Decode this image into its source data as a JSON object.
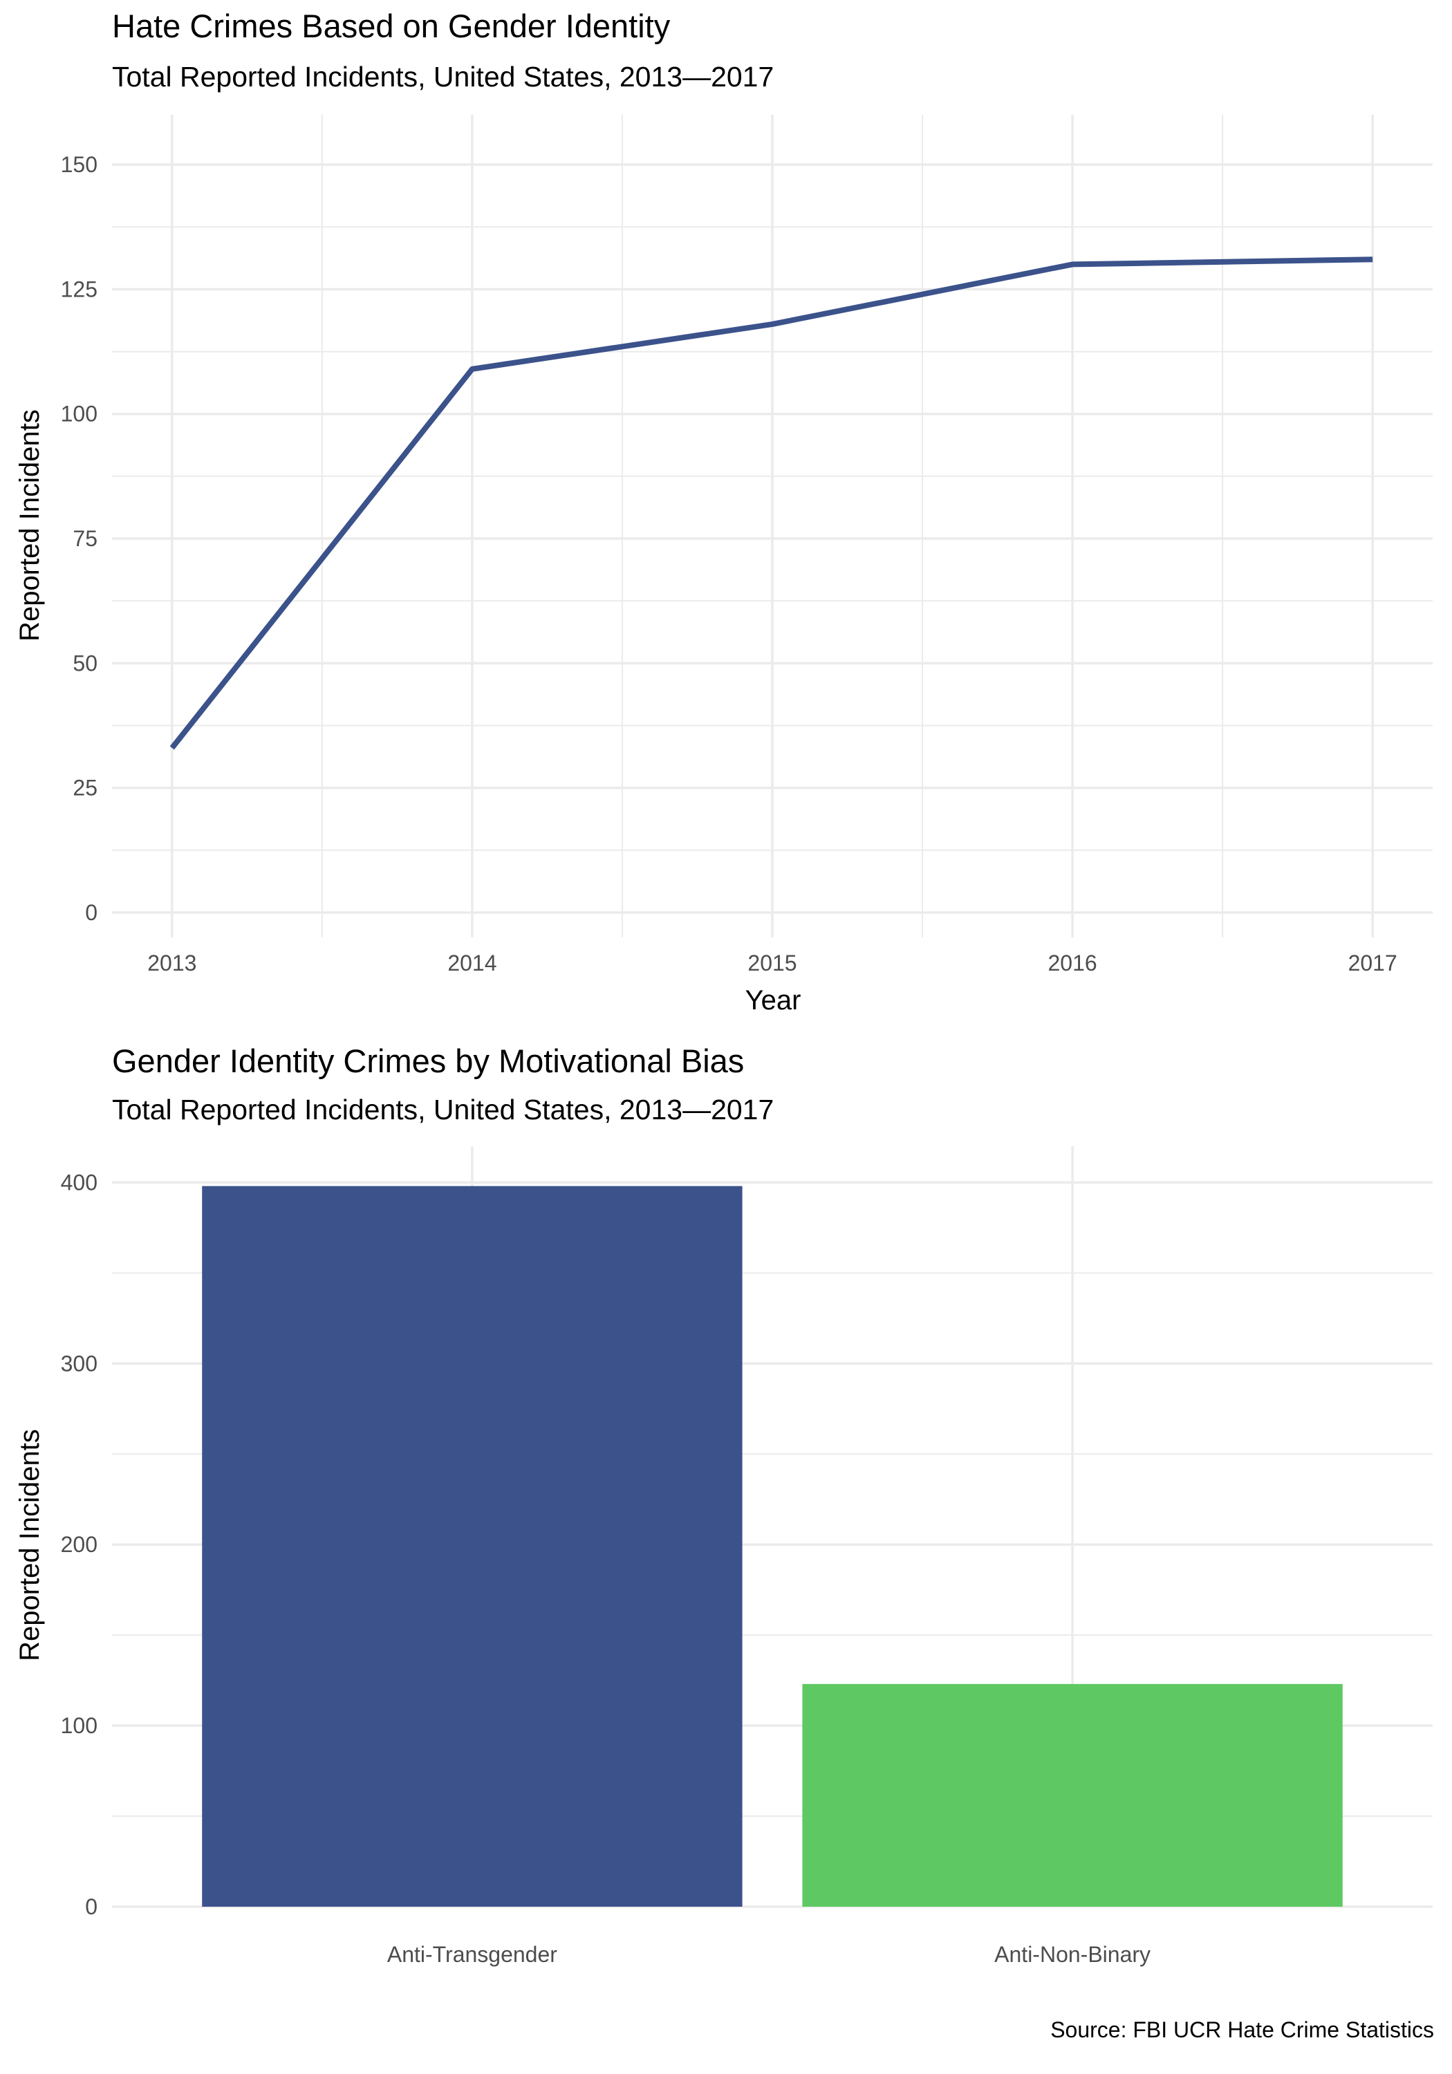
{
  "chart_data": [
    {
      "type": "line",
      "title": "Hate Crimes Based on Gender Identity",
      "subtitle": "Total Reported Incidents, United States, 2013—2017",
      "xlabel": "Year",
      "ylabel": "Reported Incidents",
      "x": [
        2013,
        2014,
        2015,
        2016,
        2017
      ],
      "series": [
        {
          "values": [
            33,
            109,
            118,
            130,
            131
          ]
        }
      ],
      "xlim": [
        2012.8,
        2017.2
      ],
      "ylim": [
        -5,
        160
      ],
      "yticks": [
        0,
        25,
        50,
        75,
        100,
        125,
        150
      ],
      "xticks": [
        2013,
        2014,
        2015,
        2016,
        2017
      ],
      "grid": true,
      "legend": "none",
      "colors": {
        "line": "#3b528b",
        "grid": "#ebebeb"
      }
    },
    {
      "type": "bar",
      "title": "Gender Identity Crimes by Motivational Bias",
      "subtitle": "Total Reported Incidents, United States, 2013—2017",
      "xlabel": "",
      "ylabel": "Reported Incidents",
      "categories": [
        "Anti-Transgender",
        "Anti-Non-Binary"
      ],
      "values": [
        398,
        123
      ],
      "ylim": [
        0,
        420
      ],
      "yticks": [
        0,
        100,
        200,
        300,
        400
      ],
      "grid": true,
      "legend": "none",
      "colors": {
        "bars": [
          "#3b528b",
          "#5ec962"
        ],
        "grid": "#ebebeb"
      }
    }
  ],
  "source": "Source: FBI UCR Hate Crime Statistics"
}
